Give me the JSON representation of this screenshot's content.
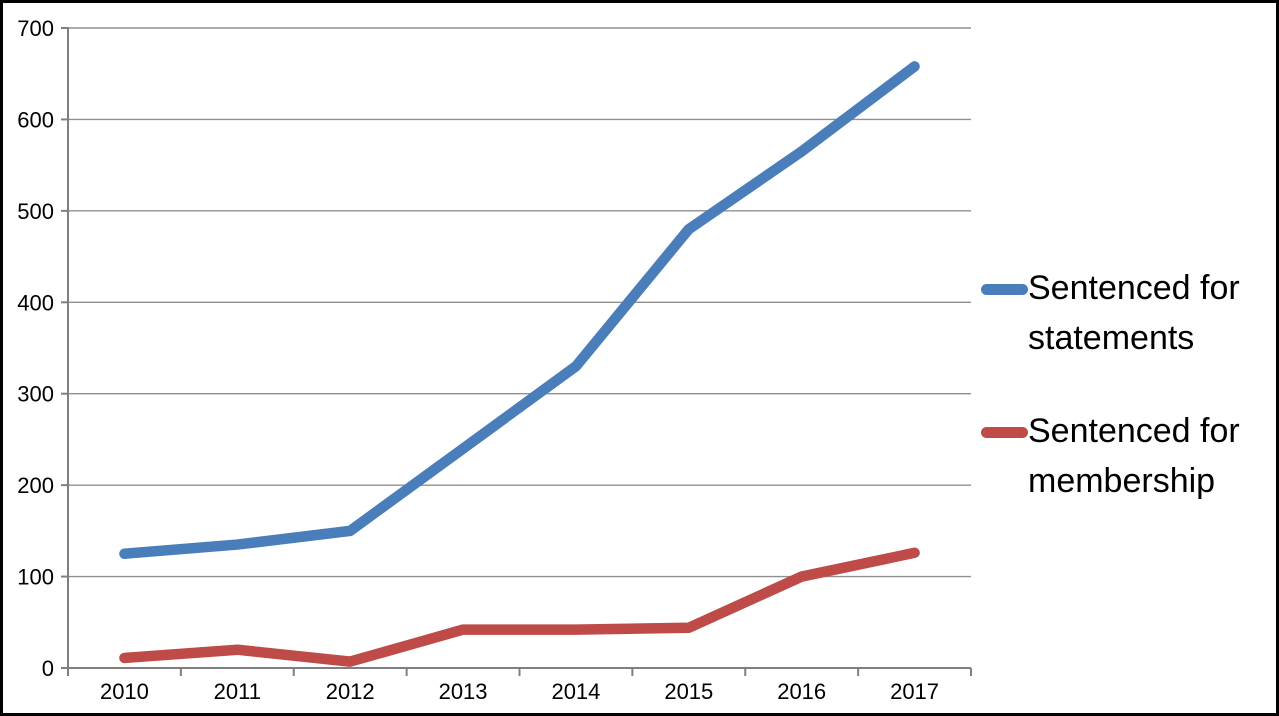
{
  "chart_data": {
    "type": "line",
    "title": "",
    "xlabel": "",
    "ylabel": "",
    "categories": [
      "2010",
      "2011",
      "2012",
      "2013",
      "2014",
      "2015",
      "2016",
      "2017"
    ],
    "series": [
      {
        "name": "Sentenced for statements",
        "color": "#4A7EBB",
        "values": [
          125,
          135,
          150,
          240,
          330,
          480,
          565,
          658
        ]
      },
      {
        "name": "Sentenced for membership",
        "color": "#BE4B48",
        "values": [
          11,
          20,
          7,
          42,
          42,
          44,
          100,
          126
        ]
      }
    ],
    "ylim": [
      0,
      700
    ],
    "yticks": [
      0,
      100,
      200,
      300,
      400,
      500,
      600,
      700
    ],
    "grid": true,
    "legend_position": "right",
    "gridline_color": "#8F8F8F",
    "axis_color": "#7F7F7F",
    "label_color": "#000000"
  }
}
